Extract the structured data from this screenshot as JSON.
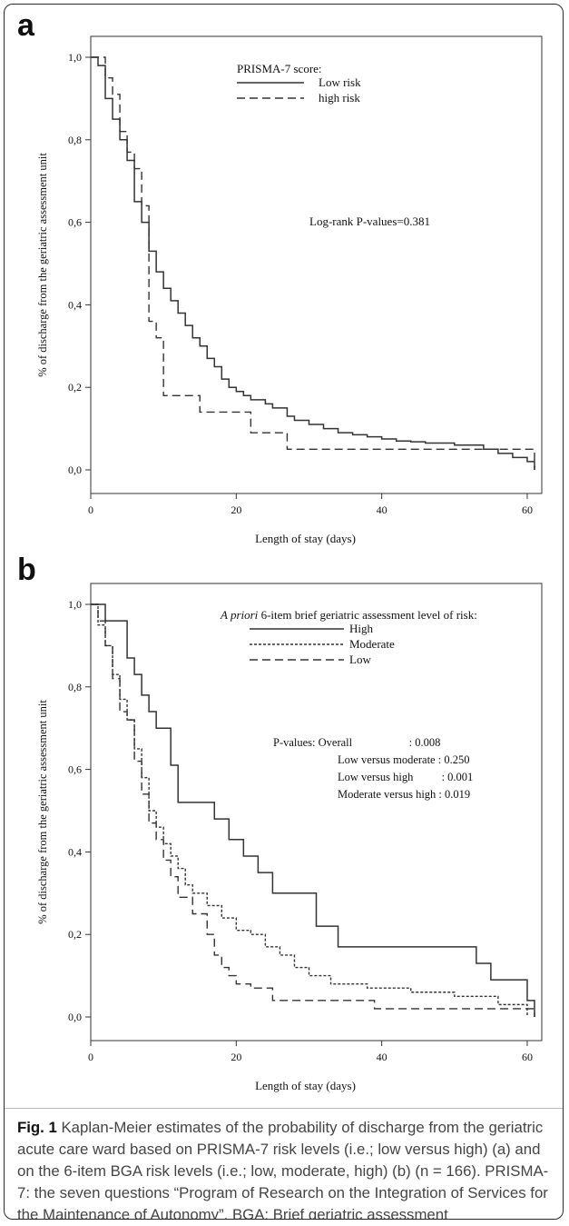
{
  "figure": {
    "caption_label": "Fig. 1",
    "caption_text": " Kaplan-Meier estimates of the probability of discharge from the geriatric acute care ward based on PRISMA-7 risk levels (i.e.; low versus high) (a) and on the 6-item BGA risk levels (i.e.; low, moderate, high) (b) (n = 166). PRISMA-7: the seven questions “Program of Research on the Integration of Services for the Maintenance of Autonomy”. BGA: Brief geriatric assessment"
  },
  "chart_data": [
    {
      "panel": "a",
      "type": "line",
      "step": true,
      "xlabel": "Length of stay (days)",
      "ylabel": "% of discharge from the geriatric assessment unit",
      "xlim": [
        0,
        62
      ],
      "ylim": [
        0,
        1
      ],
      "x_ticks": [
        0,
        20,
        40,
        60
      ],
      "x_tick_labels": [
        "0",
        "20",
        "40",
        "60"
      ],
      "y_ticks": [
        0,
        0.2,
        0.4,
        0.6,
        0.8,
        1.0
      ],
      "y_tick_labels": [
        "0,0",
        "0,2",
        "0,4",
        "0,6",
        "0,8",
        "1,0"
      ],
      "legend_title": "PRISMA-7 score:",
      "legend_position": "top-right",
      "annotation_lines": [
        "Log-rank P-values=0.381"
      ],
      "series": [
        {
          "name": "Low risk",
          "style": "solid",
          "x": [
            0,
            1,
            2,
            3,
            4,
            5,
            6,
            7,
            8,
            9,
            10,
            11,
            12,
            13,
            14,
            15,
            16,
            17,
            18,
            19,
            20,
            21,
            22,
            24,
            25,
            27,
            28,
            30,
            32,
            34,
            36,
            38,
            40,
            42,
            44,
            46,
            50,
            54,
            56,
            58,
            60,
            61
          ],
          "y": [
            1.0,
            0.98,
            0.9,
            0.85,
            0.8,
            0.75,
            0.65,
            0.6,
            0.53,
            0.48,
            0.44,
            0.41,
            0.38,
            0.35,
            0.32,
            0.3,
            0.27,
            0.25,
            0.22,
            0.2,
            0.19,
            0.18,
            0.17,
            0.16,
            0.15,
            0.13,
            0.12,
            0.11,
            0.1,
            0.09,
            0.085,
            0.08,
            0.075,
            0.07,
            0.068,
            0.065,
            0.06,
            0.05,
            0.04,
            0.03,
            0.02,
            0.0
          ]
        },
        {
          "name": "high risk",
          "style": "dashed",
          "x": [
            0,
            2,
            3,
            4,
            5,
            6,
            7,
            8,
            9,
            10,
            11,
            15,
            18,
            22,
            27,
            40,
            55,
            61
          ],
          "y": [
            1.0,
            0.95,
            0.91,
            0.82,
            0.77,
            0.73,
            0.64,
            0.36,
            0.32,
            0.18,
            0.18,
            0.14,
            0.14,
            0.09,
            0.05,
            0.05,
            0.05,
            0.0
          ]
        }
      ]
    },
    {
      "panel": "b",
      "type": "line",
      "step": true,
      "xlabel": "Length of stay (days)",
      "ylabel": "% of discharge from the geriatric assessment unit",
      "xlim": [
        0,
        62
      ],
      "ylim": [
        0,
        1
      ],
      "x_ticks": [
        0,
        20,
        40,
        60
      ],
      "x_tick_labels": [
        "0",
        "20",
        "40",
        "60"
      ],
      "y_ticks": [
        0,
        0.2,
        0.4,
        0.6,
        0.8,
        1.0
      ],
      "y_tick_labels": [
        "0,0",
        "0,2",
        "0,4",
        "0,6",
        "0,8",
        "1,0"
      ],
      "legend_title_italic": "A priori",
      "legend_title": " 6-item brief geriatric assessment level of risk:",
      "legend_position": "top-right",
      "annotation_lines": [
        "P-values: Overall                    : 0.008",
        "Low versus moderate : 0.250",
        "Low versus high          : 0.001",
        "Moderate versus high : 0.019"
      ],
      "series": [
        {
          "name": "High",
          "style": "solid",
          "x": [
            0,
            2,
            5,
            6,
            7,
            8,
            9,
            11,
            12,
            13,
            17,
            19,
            21,
            23,
            25,
            31,
            34,
            53,
            55,
            60,
            61
          ],
          "y": [
            1.0,
            0.96,
            0.87,
            0.83,
            0.78,
            0.74,
            0.7,
            0.61,
            0.52,
            0.52,
            0.48,
            0.43,
            0.39,
            0.35,
            0.3,
            0.22,
            0.17,
            0.13,
            0.09,
            0.04,
            0.0
          ]
        },
        {
          "name": "Moderate",
          "style": "dotted",
          "x": [
            0,
            1,
            2,
            3,
            4,
            5,
            6,
            7,
            8,
            9,
            10,
            11,
            12,
            13,
            14,
            16,
            18,
            20,
            22,
            24,
            26,
            28,
            30,
            33,
            38,
            44,
            50,
            56,
            60
          ],
          "y": [
            1.0,
            0.95,
            0.9,
            0.83,
            0.77,
            0.72,
            0.65,
            0.58,
            0.5,
            0.46,
            0.42,
            0.39,
            0.36,
            0.32,
            0.3,
            0.27,
            0.24,
            0.21,
            0.2,
            0.17,
            0.15,
            0.12,
            0.1,
            0.08,
            0.07,
            0.06,
            0.05,
            0.03,
            0.0
          ]
        },
        {
          "name": "Low",
          "style": "dashed",
          "x": [
            0,
            1,
            2,
            3,
            4,
            5,
            6,
            7,
            8,
            9,
            10,
            11,
            12,
            14,
            16,
            17,
            18,
            19,
            20,
            22,
            25,
            30,
            39,
            50,
            61
          ],
          "y": [
            1.0,
            0.96,
            0.9,
            0.82,
            0.74,
            0.72,
            0.62,
            0.54,
            0.47,
            0.43,
            0.38,
            0.34,
            0.29,
            0.25,
            0.2,
            0.15,
            0.12,
            0.1,
            0.08,
            0.07,
            0.04,
            0.04,
            0.02,
            0.02,
            0.0
          ]
        }
      ]
    }
  ]
}
